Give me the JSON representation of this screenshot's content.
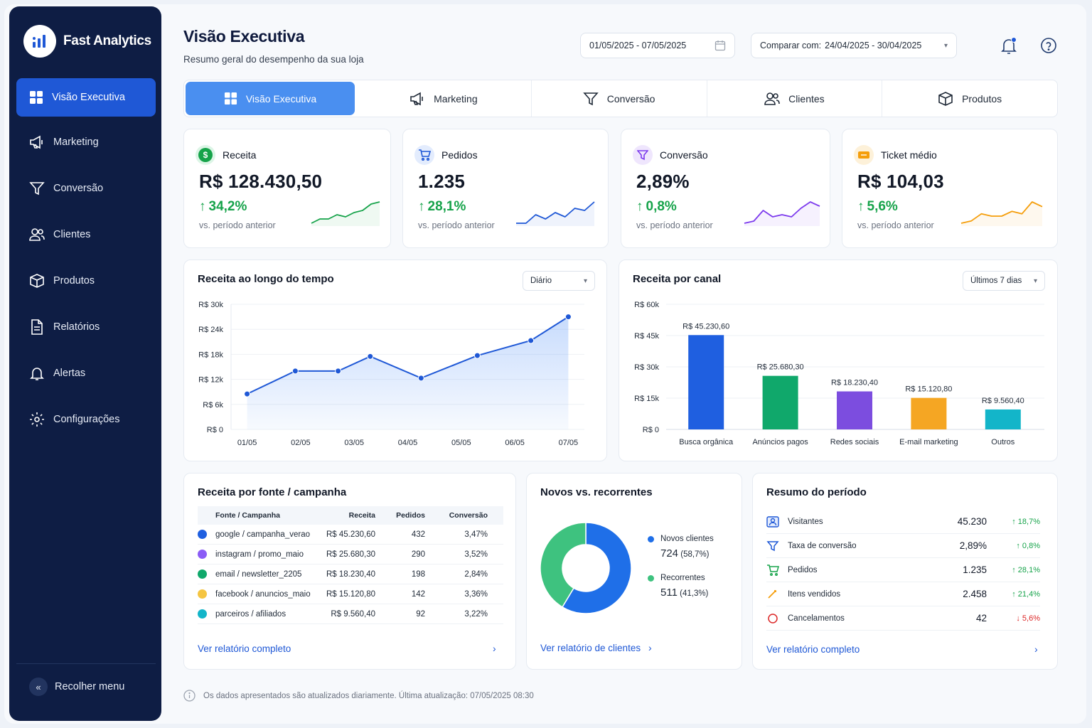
{
  "brand": {
    "name": "Fast Analytics"
  },
  "sidebar": {
    "items": [
      {
        "label": "Visão Executiva",
        "icon": "grid-icon"
      },
      {
        "label": "Marketing",
        "icon": "megaphone-icon"
      },
      {
        "label": "Conversão",
        "icon": "funnel-icon"
      },
      {
        "label": "Clientes",
        "icon": "users-icon"
      },
      {
        "label": "Produtos",
        "icon": "box-icon"
      },
      {
        "label": "Relatórios",
        "icon": "document-icon"
      },
      {
        "label": "Alertas",
        "icon": "bell-icon"
      },
      {
        "label": "Configurações",
        "icon": "gear-icon"
      }
    ],
    "collapse_label": "Recolher menu"
  },
  "header": {
    "title": "Visão Executiva",
    "subtitle": "Resumo geral do desempenho da sua loja",
    "date_range": "01/05/2025 - 07/05/2025",
    "compare_label": "Comparar com:",
    "compare_range": "24/04/2025 - 30/04/2025"
  },
  "tabs": [
    {
      "label": "Visão Executiva"
    },
    {
      "label": "Marketing"
    },
    {
      "label": "Conversão"
    },
    {
      "label": "Clientes"
    },
    {
      "label": "Produtos"
    }
  ],
  "kpis": [
    {
      "label": "Receita",
      "value": "R$ 128.430,50",
      "delta": "34,2%",
      "note": "vs. período anterior",
      "color": "#16a34a",
      "spark": [
        3,
        4,
        4,
        5,
        4.5,
        5.5,
        6,
        7.5,
        8
      ]
    },
    {
      "label": "Pedidos",
      "value": "1.235",
      "delta": "28,1%",
      "note": "vs. período anterior",
      "color": "#1f58d6",
      "spark": [
        3,
        3,
        5,
        4,
        5.5,
        4.5,
        6.5,
        6,
        8
      ]
    },
    {
      "label": "Conversão",
      "value": "2,89%",
      "delta": "0,8%",
      "note": "vs. período anterior",
      "color": "#7c3aed",
      "spark": [
        3,
        3.5,
        6,
        4.5,
        5,
        4.5,
        6.5,
        8,
        7
      ]
    },
    {
      "label": "Ticket médio",
      "value": "R$ 104,03",
      "delta": "5,6%",
      "note": "vs. período anterior",
      "color": "#f59e0b",
      "spark": [
        3,
        3.5,
        5,
        4.5,
        4.5,
        5.5,
        5,
        7.5,
        6.5
      ]
    }
  ],
  "revenue_time": {
    "title": "Receita ao longo do tempo",
    "select": "Diário",
    "chart_data": {
      "type": "area",
      "x": [
        "01/05",
        "02/05",
        "03/05",
        "04/05",
        "05/05",
        "06/05",
        "07/05"
      ],
      "y_ticks": [
        "R$ 0",
        "R$ 6k",
        "R$ 12k",
        "R$ 18k",
        "R$ 24k",
        "R$ 30k"
      ],
      "ylim": [
        0,
        30000
      ],
      "points": [
        [
          1,
          8500
        ],
        [
          1.9,
          14000
        ],
        [
          2.7,
          14000
        ],
        [
          3.3,
          17500
        ],
        [
          4.25,
          12300
        ],
        [
          5.3,
          17700
        ],
        [
          6.3,
          21300
        ],
        [
          7,
          27000
        ]
      ]
    }
  },
  "revenue_channel": {
    "title": "Receita por canal",
    "select": "Últimos 7 dias",
    "chart_data": {
      "type": "bar",
      "categories": [
        "Busca orgânica",
        "Anúncios pagos",
        "Redes sociais",
        "E-mail marketing",
        "Outros"
      ],
      "values": [
        45230.6,
        25680.3,
        18230.4,
        15120.8,
        9560.4
      ],
      "labels": [
        "R$ 45.230,60",
        "R$ 25.680,30",
        "R$ 18.230,40",
        "R$ 15.120,80",
        "R$ 9.560,40"
      ],
      "colors": [
        "#1f5fe0",
        "#10a86b",
        "#7c4ddf",
        "#f5a623",
        "#13b5c9"
      ],
      "y_ticks": [
        "R$ 0",
        "R$ 15k",
        "R$ 30k",
        "R$ 45k",
        "R$ 60k"
      ],
      "ylim": [
        0,
        60000
      ]
    }
  },
  "source_table": {
    "title": "Receita por fonte / campanha",
    "headers": [
      "Fonte / Campanha",
      "Receita",
      "Pedidos",
      "Conversão"
    ],
    "rows": [
      {
        "source": "google / campanha_verao",
        "revenue": "R$ 45.230,60",
        "orders": "432",
        "conv": "3,47%",
        "color": "#1f5fe0"
      },
      {
        "source": "instagram / promo_maio",
        "revenue": "R$ 25.680,30",
        "orders": "290",
        "conv": "3,52%",
        "color": "#8b5cf6"
      },
      {
        "source": "email / newsletter_2205",
        "revenue": "R$ 18.230,40",
        "orders": "198",
        "conv": "2,84%",
        "color": "#10a86b"
      },
      {
        "source": "facebook / anuncios_maio",
        "revenue": "R$ 15.120,80",
        "orders": "142",
        "conv": "3,36%",
        "color": "#f5c542"
      },
      {
        "source": "parceiros / afiliados",
        "revenue": "R$ 9.560,40",
        "orders": "92",
        "conv": "3,22%",
        "color": "#13b5c9"
      }
    ],
    "link": "Ver relatório completo"
  },
  "new_vs_returning": {
    "title": "Novos vs. recorrentes",
    "chart_data": {
      "type": "pie",
      "segments": [
        {
          "name": "Novos clientes",
          "value": 724,
          "pct": "(58,7%)",
          "color": "#1f6fe8"
        },
        {
          "name": "Recorrentes",
          "value": 511,
          "pct": "(41,3%)",
          "color": "#3ec27f"
        }
      ]
    },
    "link": "Ver relatório de clientes"
  },
  "summary": {
    "title": "Resumo do período",
    "rows": [
      {
        "label": "Visitantes",
        "value": "45.230",
        "delta": "↑ 18,7%",
        "dir": "up"
      },
      {
        "label": "Taxa de conversão",
        "value": "2,89%",
        "delta": "↑ 0,8%",
        "dir": "up"
      },
      {
        "label": "Pedidos",
        "value": "1.235",
        "delta": "↑ 28,1%",
        "dir": "up"
      },
      {
        "label": "Itens vendidos",
        "value": "2.458",
        "delta": "↑ 21,4%",
        "dir": "up"
      },
      {
        "label": "Cancelamentos",
        "value": "42",
        "delta": "↓ 5,6%",
        "dir": "down"
      }
    ],
    "link": "Ver relatório completo"
  },
  "footer": {
    "text": "Os dados apresentados são atualizados diariamente. Última atualização: 07/05/2025 08:30"
  }
}
